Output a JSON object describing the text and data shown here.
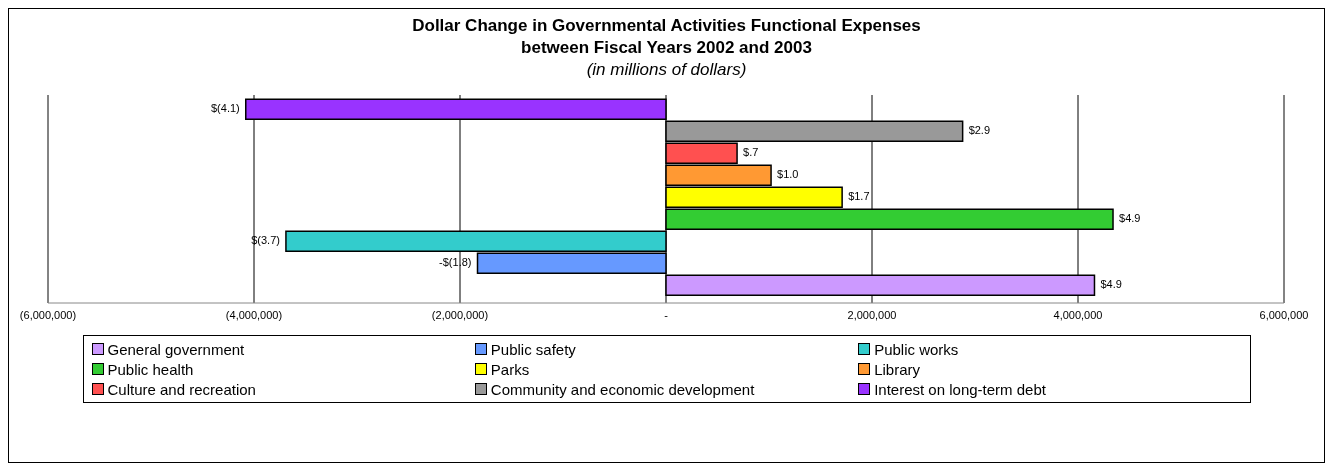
{
  "chart_data": {
    "type": "bar",
    "orientation": "horizontal",
    "title": "Dollar Change in Governmental Activities Functional Expenses\nbetween Fiscal Years 2002 and 2003",
    "subtitle": "(in millions of dollars)",
    "categories": [
      null
    ],
    "series": [
      {
        "name": "General government",
        "color": "#cc99ff",
        "values": [
          4160000
        ]
      },
      {
        "name": "Public safety",
        "color": "#6699ff",
        "values": [
          -1830000
        ]
      },
      {
        "name": "Public works",
        "color": "#33cccc",
        "values": [
          -3690000
        ]
      },
      {
        "name": "Public health",
        "color": "#33cc33",
        "values": [
          4340000
        ]
      },
      {
        "name": "Parks",
        "color": "#ffff00",
        "values": [
          1710000
        ]
      },
      {
        "name": "Library",
        "color": "#ff9933",
        "values": [
          1020000
        ]
      },
      {
        "name": "Culture and recreation",
        "color": "#ff5050",
        "values": [
          690000
        ]
      },
      {
        "name": "Community and economic development",
        "color": "#999999",
        "values": [
          2880000
        ]
      },
      {
        "name": "Interest on long-term debt",
        "color": "#9933ff",
        "values": [
          -4080000
        ]
      }
    ],
    "annotations": [
      {
        "text": "$4.9",
        "x": 4160000
      },
      {
        "text": "-$(1.8)",
        "x": -1830000
      },
      {
        "text": "$(3.7)",
        "x": -3690000
      },
      {
        "text": "$4.9",
        "x": 4340000
      },
      {
        "text": "$1.7",
        "x": 1710000
      },
      {
        "text": "$1.0",
        "x": 1020000
      },
      {
        "text": "$.7",
        "x": 690000
      },
      {
        "text": "$2.9",
        "x": 2880000
      },
      {
        "text": "$(4.1)",
        "x": -4080000
      }
    ],
    "xlim": [
      -6000000,
      6000000
    ],
    "xticks": [
      {
        "value": -6000000,
        "label": "(6,000,000)"
      },
      {
        "value": -4000000,
        "label": "(4,000,000)"
      },
      {
        "value": -2000000,
        "label": "(2,000,000)"
      },
      {
        "value": 0,
        "label": "-"
      },
      {
        "value": 2000000,
        "label": "2,000,000"
      },
      {
        "value": 4000000,
        "label": "4,000,000"
      },
      {
        "value": 6000000,
        "label": "6,000,000"
      }
    ],
    "grid": "x",
    "legend": "bottom"
  }
}
